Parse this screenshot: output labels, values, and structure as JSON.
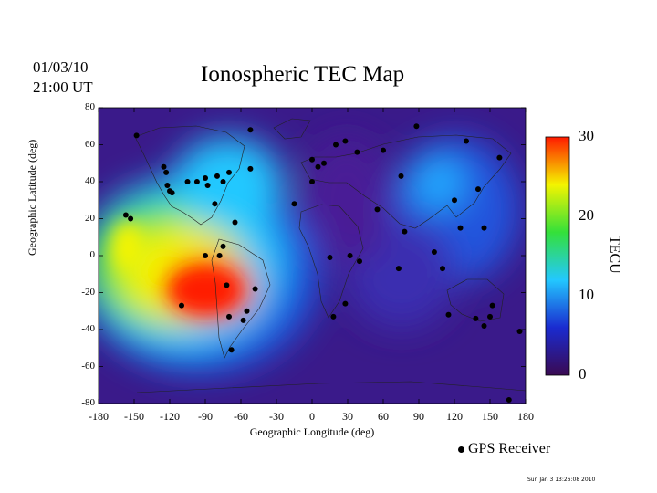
{
  "header": {
    "date": "01/03/10",
    "time": "21:00 UT",
    "title": "Ionospheric TEC Map"
  },
  "axes": {
    "xlabel": "Geographic Longitude (deg)",
    "ylabel": "Geographic Latitude (deg)",
    "xticks": [
      "-180",
      "-150",
      "-120",
      "-90",
      "-60",
      "-30",
      "0",
      "30",
      "60",
      "90",
      "120",
      "150",
      "180"
    ],
    "yticks": [
      "80",
      "60",
      "40",
      "20",
      "0",
      "-20",
      "-40",
      "-60",
      "-80"
    ],
    "xlim": [
      -180,
      180
    ],
    "ylim": [
      -80,
      80
    ]
  },
  "colorbar": {
    "label": "TECU",
    "ticks": [
      "30",
      "20",
      "10",
      "0"
    ],
    "range": [
      0,
      30
    ],
    "colors": [
      "#3a0a52",
      "#1a2bd0",
      "#23c8ff",
      "#34e03a",
      "#f4f400",
      "#ff1a00"
    ]
  },
  "legend": {
    "label": "GPS Receiver"
  },
  "footer": {
    "timestamp": "Sun Jan  3 13:26:08 2010"
  },
  "map": {
    "type": "heatmap",
    "tec_anomalies": [
      {
        "lon": -90,
        "lat": -15,
        "tec": 28
      },
      {
        "lon": -120,
        "lat": 10,
        "tec": 20
      },
      {
        "lon": -170,
        "lat": -10,
        "tec": 12
      },
      {
        "lon": 60,
        "lat": -10,
        "tec": 5
      },
      {
        "lon": 120,
        "lat": 30,
        "tec": 10
      },
      {
        "lon": 0,
        "lat": 50,
        "tec": 2
      }
    ],
    "receivers": [
      {
        "lon": -148,
        "lat": 65
      },
      {
        "lon": -125,
        "lat": 48
      },
      {
        "lon": -123,
        "lat": 45
      },
      {
        "lon": -122,
        "lat": 38
      },
      {
        "lon": -120,
        "lat": 35
      },
      {
        "lon": -118,
        "lat": 34
      },
      {
        "lon": -105,
        "lat": 40
      },
      {
        "lon": -97,
        "lat": 40
      },
      {
        "lon": -90,
        "lat": 42
      },
      {
        "lon": -88,
        "lat": 38
      },
      {
        "lon": -80,
        "lat": 43
      },
      {
        "lon": -75,
        "lat": 40
      },
      {
        "lon": -70,
        "lat": 45
      },
      {
        "lon": -82,
        "lat": 28
      },
      {
        "lon": -65,
        "lat": 18
      },
      {
        "lon": -157,
        "lat": 22
      },
      {
        "lon": -153,
        "lat": 20
      },
      {
        "lon": -110,
        "lat": -27
      },
      {
        "lon": -90,
        "lat": 0
      },
      {
        "lon": -78,
        "lat": 0
      },
      {
        "lon": -75,
        "lat": 5
      },
      {
        "lon": -72,
        "lat": -16
      },
      {
        "lon": -70,
        "lat": -33
      },
      {
        "lon": -58,
        "lat": -35
      },
      {
        "lon": -48,
        "lat": -18
      },
      {
        "lon": -55,
        "lat": -30
      },
      {
        "lon": -68,
        "lat": -51
      },
      {
        "lon": -52,
        "lat": 47
      },
      {
        "lon": -52,
        "lat": 68
      },
      {
        "lon": 0,
        "lat": 52
      },
      {
        "lon": 5,
        "lat": 48
      },
      {
        "lon": 10,
        "lat": 50
      },
      {
        "lon": 20,
        "lat": 60
      },
      {
        "lon": 28,
        "lat": 62
      },
      {
        "lon": 38,
        "lat": 56
      },
      {
        "lon": 60,
        "lat": 57
      },
      {
        "lon": -15,
        "lat": 28
      },
      {
        "lon": 0,
        "lat": 40
      },
      {
        "lon": 15,
        "lat": -1
      },
      {
        "lon": 32,
        "lat": 0
      },
      {
        "lon": 40,
        "lat": -3
      },
      {
        "lon": 28,
        "lat": -26
      },
      {
        "lon": 18,
        "lat": -33
      },
      {
        "lon": 75,
        "lat": 43
      },
      {
        "lon": 78,
        "lat": 13
      },
      {
        "lon": 55,
        "lat": 25
      },
      {
        "lon": 103,
        "lat": 2
      },
      {
        "lon": 110,
        "lat": -7
      },
      {
        "lon": 115,
        "lat": -32
      },
      {
        "lon": 138,
        "lat": -34
      },
      {
        "lon": 145,
        "lat": -38
      },
      {
        "lon": 150,
        "lat": -33
      },
      {
        "lon": 152,
        "lat": -27
      },
      {
        "lon": 120,
        "lat": 30
      },
      {
        "lon": 125,
        "lat": 15
      },
      {
        "lon": 140,
        "lat": 36
      },
      {
        "lon": 145,
        "lat": 15
      },
      {
        "lon": 158,
        "lat": 53
      },
      {
        "lon": 130,
        "lat": 62
      },
      {
        "lon": 88,
        "lat": 70
      },
      {
        "lon": 175,
        "lat": -41
      },
      {
        "lon": 166,
        "lat": -78
      },
      {
        "lon": 73,
        "lat": -7
      }
    ]
  }
}
